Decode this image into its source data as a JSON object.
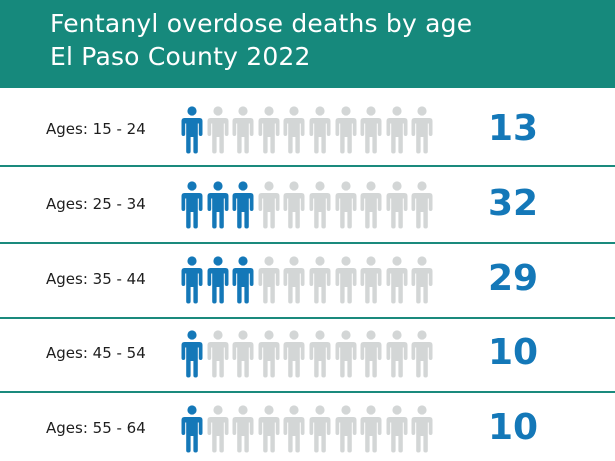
{
  "header": {
    "title_line1": "Fentanyl overdose deaths by age",
    "title_line2": "El Paso County 2022"
  },
  "colors": {
    "header_bg": "#16897c",
    "highlight": "#1478b8",
    "muted": "#d3d6d6",
    "divider": "#1a8a7d"
  },
  "icon": "person-icon",
  "icons_per_row": 10,
  "chart_data": {
    "type": "pictograph",
    "title": "Fentanyl overdose deaths by age",
    "subtitle": "El Paso County 2022",
    "categories": [
      "Ages: 15 - 24",
      "Ages: 25 - 34",
      "Ages: 35 - 44",
      "Ages: 45 - 54",
      "Ages: 55 - 64"
    ],
    "values": [
      13,
      32,
      29,
      10,
      10
    ],
    "highlighted_icons": [
      1,
      3,
      3,
      1,
      1
    ],
    "total_icons": 10
  }
}
